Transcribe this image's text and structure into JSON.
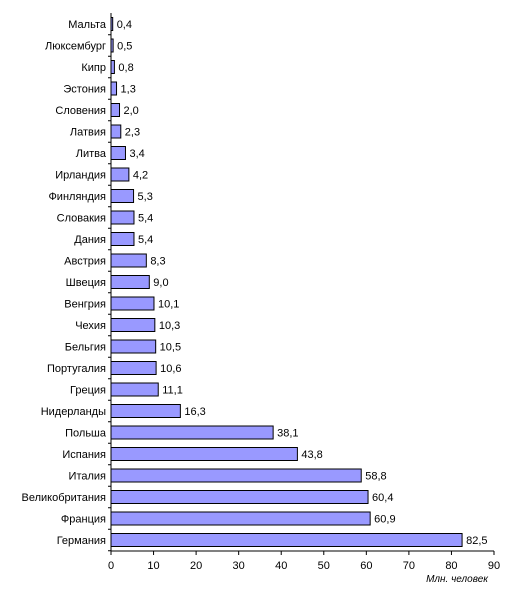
{
  "chart_data": {
    "type": "bar",
    "orientation": "horizontal",
    "categories": [
      "Мальта",
      "Люксембург",
      "Кипр",
      "Эстония",
      "Словения",
      "Латвия",
      "Литва",
      "Ирландия",
      "Финляндия",
      "Словакия",
      "Дания",
      "Австрия",
      "Швеция",
      "Венгрия",
      "Чехия",
      "Бельгия",
      "Португалия",
      "Греция",
      "Нидерланды",
      "Польша",
      "Испания",
      "Италия",
      "Великобритания",
      "Франция",
      "Германия"
    ],
    "values": [
      0.4,
      0.5,
      0.8,
      1.3,
      2.0,
      2.3,
      3.4,
      4.2,
      5.3,
      5.4,
      5.4,
      8.3,
      9.0,
      10.1,
      10.3,
      10.5,
      10.6,
      11.1,
      16.3,
      38.1,
      43.8,
      58.8,
      60.4,
      60.9,
      82.5
    ],
    "value_labels": [
      "0,4",
      "0,5",
      "0,8",
      "1,3",
      "2,0",
      "2,3",
      "3,4",
      "4,2",
      "5,3",
      "5,4",
      "5,4",
      "8,3",
      "9,0",
      "10,1",
      "10,3",
      "10,5",
      "10,6",
      "11,1",
      "16,3",
      "38,1",
      "43,8",
      "58,8",
      "60,4",
      "60,9",
      "82,5"
    ],
    "xlim": [
      0,
      90
    ],
    "xticks": [
      0,
      10,
      20,
      30,
      40,
      50,
      60,
      70,
      80,
      90
    ],
    "xlabel": "Млн. человек",
    "grid": false,
    "bar_color": "#9999ff",
    "bar_edge_color": "#000000"
  }
}
